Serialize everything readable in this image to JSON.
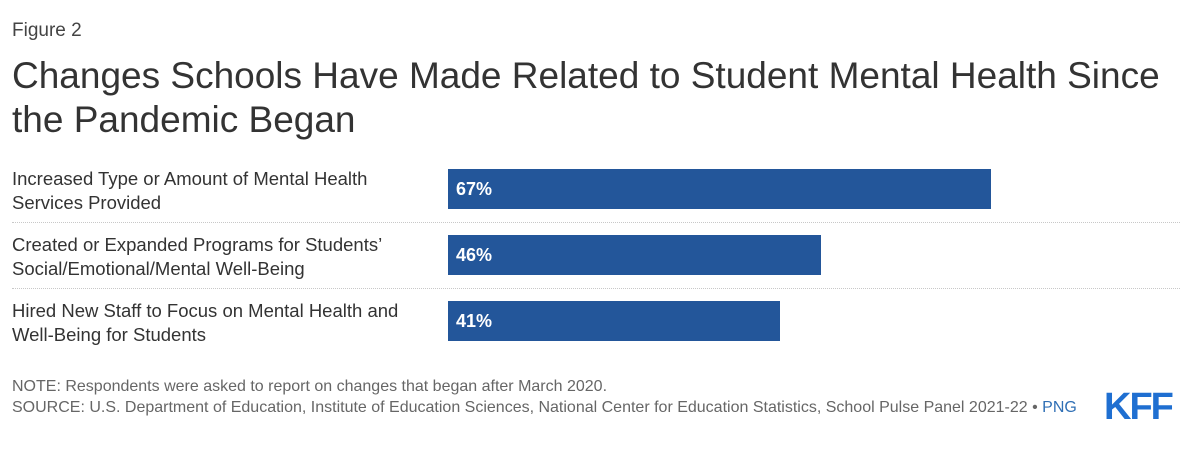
{
  "figure_label": "Figure 2",
  "title": "Changes Schools Have Made Related to Student Mental Health Since the Pandemic Began",
  "chart_data": {
    "type": "bar",
    "orientation": "horizontal",
    "categories": [
      [
        "Increased Type or Amount of Mental Health",
        "Services Provided"
      ],
      [
        "Created or Expanded Programs for Students’",
        "Social/Emotional/Mental Well-Being"
      ],
      [
        "Hired New Staff to Focus on Mental Health and",
        "Well-Being for Students"
      ]
    ],
    "values": [
      67,
      46,
      41
    ],
    "value_labels": [
      "67%",
      "46%",
      "41%"
    ],
    "xlim": [
      0,
      100
    ],
    "bar_color": "#23569a",
    "grid": false,
    "legend": "none"
  },
  "footer": {
    "note": "NOTE: Respondents were asked to report on changes that began after March 2020.",
    "source": "SOURCE: U.S. Department of Education, Institute of Education Sciences, National Center for Education Statistics, School Pulse Panel 2021-22",
    "separator": " • ",
    "png_link": "PNG"
  },
  "logo": "KFF",
  "colors": {
    "bar": "#23569a",
    "logo": "#1f6fd1",
    "link": "#2f6fb5"
  }
}
